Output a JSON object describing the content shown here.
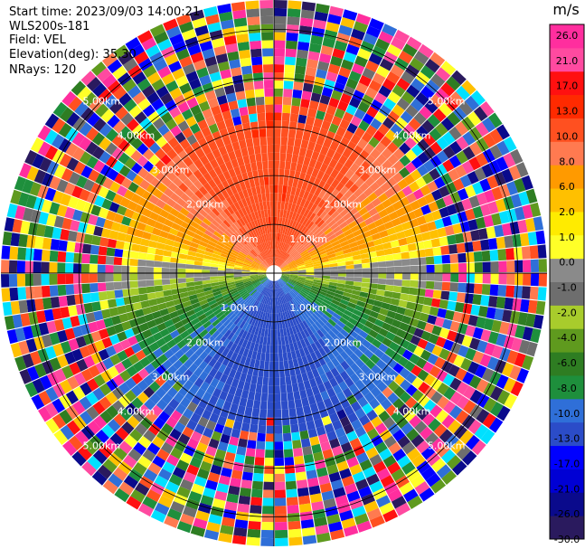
{
  "header": {
    "start_time": "Start time: 2023/09/03 14:00:21",
    "instrument": "WLS200s-181",
    "field": "Field: VEL",
    "elevation": "Elevation(deg): 35.30",
    "nrays": "NRays: 120"
  },
  "chart_data": {
    "type": "heatmap",
    "projection": "polar PPI",
    "field": "VEL",
    "n_rays": 120,
    "elevation_deg": 35.3,
    "range_rings_km": [
      1,
      2,
      3,
      4,
      5
    ],
    "range_labels": [
      "1.00km",
      "2.00km",
      "3.00km",
      "4.00km",
      "5.00km"
    ],
    "max_range_km": 5.6,
    "colorbar": {
      "unit": "m/s",
      "colors": [
        "#2a1a5e",
        "#0a0a8c",
        "#0000d4",
        "#0000ff",
        "#2b4cc8",
        "#2f6fd8",
        "#1e8f3c",
        "#2e7d22",
        "#5f9a1e",
        "#a8cc2c",
        "#6e6e6e",
        "#8a8a8a",
        "#ffff28",
        "#ffeb00",
        "#ffc000",
        "#ff9a00",
        "#ff7a50",
        "#ff5020",
        "#ff2a00",
        "#ff1010",
        "#ff4aa0",
        "#ff2e9e"
      ],
      "tick_labels": [
        "26.0",
        "21.0",
        "17.0",
        "13.0",
        "10.0",
        "8.0",
        "6.0",
        "2.0",
        "1.0",
        "0.0",
        "-1.0",
        "-2.0",
        "-4.0",
        "-6.0",
        "-8.0",
        "-10.0",
        "-13.0",
        "-17.0",
        "-21.0",
        "-26.0",
        "-30.0"
      ]
    },
    "velocity_pattern": {
      "north_sector": "positive 10-17 m/s (orange-red)",
      "east_west_axis": "near 0 to +2 m/s (yellow/grey)",
      "south_sector": "negative -6 to -13 m/s (green to blue)",
      "far_range": "noisy random velocities"
    }
  }
}
